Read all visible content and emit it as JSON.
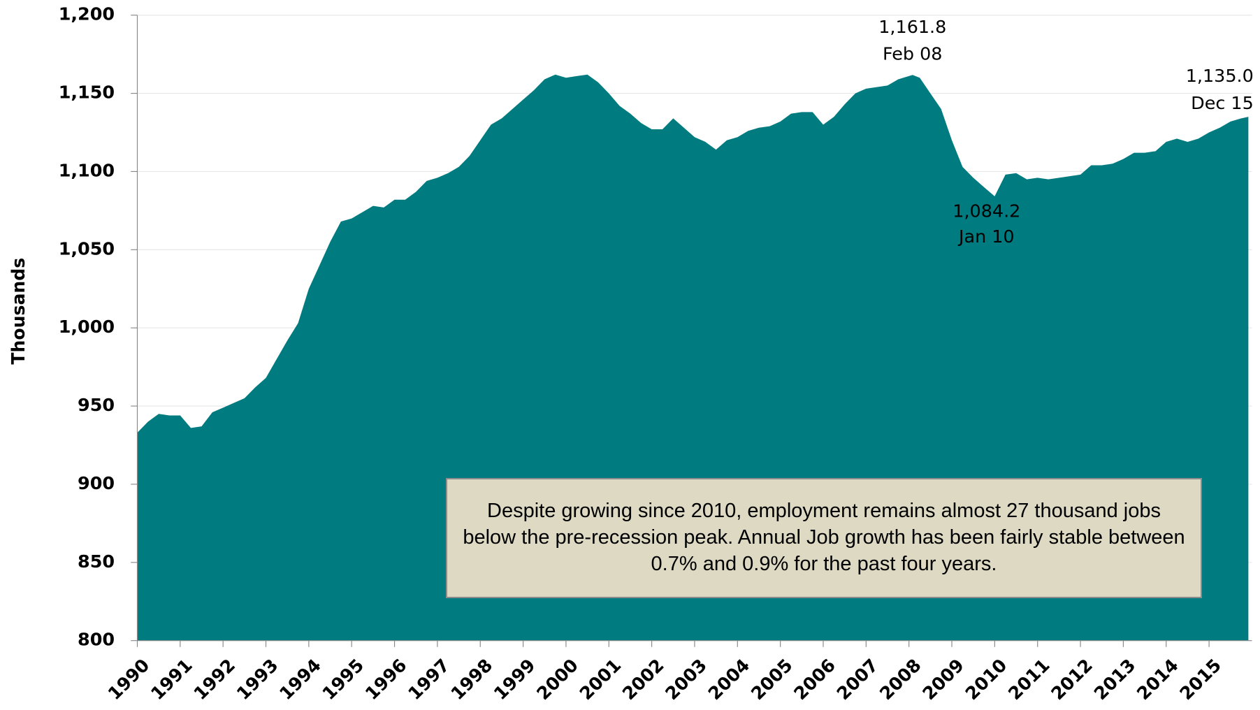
{
  "chart_data": {
    "type": "area",
    "y_label": "Thousands",
    "color": "#007b80",
    "grid": true,
    "x": [
      1990,
      1990.25,
      1990.5,
      1990.75,
      1991,
      1991.25,
      1991.5,
      1991.75,
      1992,
      1992.25,
      1992.5,
      1992.75,
      1993,
      1993.25,
      1993.5,
      1993.75,
      1994,
      1994.25,
      1994.5,
      1994.75,
      1995,
      1995.25,
      1995.5,
      1995.75,
      1996,
      1996.25,
      1996.5,
      1996.75,
      1997,
      1997.25,
      1997.5,
      1997.75,
      1998,
      1998.25,
      1998.5,
      1998.75,
      1999,
      1999.25,
      1999.5,
      1999.75,
      2000,
      2000.25,
      2000.5,
      2000.75,
      2001,
      2001.25,
      2001.5,
      2001.75,
      2002,
      2002.25,
      2002.5,
      2002.75,
      2003,
      2003.25,
      2003.5,
      2003.75,
      2004,
      2004.25,
      2004.5,
      2004.75,
      2005,
      2005.25,
      2005.5,
      2005.75,
      2006,
      2006.25,
      2006.5,
      2006.75,
      2007,
      2007.25,
      2007.5,
      2007.75,
      2008.083,
      2008.25,
      2008.5,
      2008.75,
      2009,
      2009.25,
      2009.5,
      2009.75,
      2010,
      2010.25,
      2010.5,
      2010.75,
      2011,
      2011.25,
      2011.5,
      2011.75,
      2012,
      2012.25,
      2012.5,
      2012.75,
      2013,
      2013.25,
      2013.5,
      2013.75,
      2014,
      2014.25,
      2014.5,
      2014.75,
      2015,
      2015.25,
      2015.5,
      2015.75,
      2015.917
    ],
    "values": [
      933,
      940,
      945,
      944,
      944,
      936,
      937,
      946,
      949,
      952,
      955,
      962,
      968,
      980,
      992,
      1003,
      1025,
      1040,
      1055,
      1068,
      1070,
      1074,
      1078,
      1077,
      1082,
      1082,
      1087,
      1094,
      1096,
      1099,
      1103,
      1110,
      1120,
      1130,
      1134,
      1140,
      1146,
      1152,
      1159,
      1162,
      1160,
      1161,
      1162,
      1157,
      1150,
      1142,
      1137,
      1131,
      1127,
      1127,
      1134,
      1128,
      1122,
      1119,
      1114,
      1120,
      1122,
      1126,
      1128,
      1129,
      1132,
      1137,
      1138,
      1138,
      1130,
      1135,
      1143,
      1150,
      1153,
      1154,
      1155,
      1159,
      1161.8,
      1160,
      1150,
      1140,
      1120,
      1103,
      1096,
      1090,
      1084.2,
      1098,
      1099,
      1095,
      1096,
      1095,
      1096,
      1097,
      1098,
      1104,
      1104,
      1105,
      1108,
      1112,
      1112,
      1113,
      1119,
      1121,
      1119,
      1121,
      1125,
      1128,
      1132,
      1134,
      1135.0
    ],
    "xlim": [
      1990,
      2016
    ],
    "xticks": [
      1990,
      1991,
      1992,
      1993,
      1994,
      1995,
      1996,
      1997,
      1998,
      1999,
      2000,
      2001,
      2002,
      2003,
      2004,
      2005,
      2006,
      2007,
      2008,
      2009,
      2010,
      2011,
      2012,
      2013,
      2014,
      2015
    ],
    "ylim": [
      800,
      1200
    ],
    "yticks": [
      800,
      850,
      900,
      950,
      {
        "value": 1000,
        "label": "1,000"
      },
      {
        "value": 1050,
        "label": "1,050"
      },
      {
        "value": 1100,
        "label": "1,100"
      },
      {
        "value": 1150,
        "label": "1,150"
      },
      {
        "value": 1200,
        "label": "1,200"
      }
    ],
    "annotations": [
      {
        "label": "1,161.8",
        "date": "Feb 08",
        "x": 2008.083,
        "y": 1161.8,
        "position": "above"
      },
      {
        "label": "1,084.2",
        "date": "Jan 10",
        "x": 2010,
        "y": 1084.2,
        "position": "below"
      },
      {
        "label": "1,135.0",
        "date": "Dec 15",
        "x": 2015.917,
        "y": 1135.0,
        "position": "above-left"
      }
    ],
    "note": "Despite growing since 2010, employment remains almost 27 thousand jobs below the pre-recession peak. Annual Job growth has been fairly stable between 0.7% and 0.9% for the past four years."
  }
}
